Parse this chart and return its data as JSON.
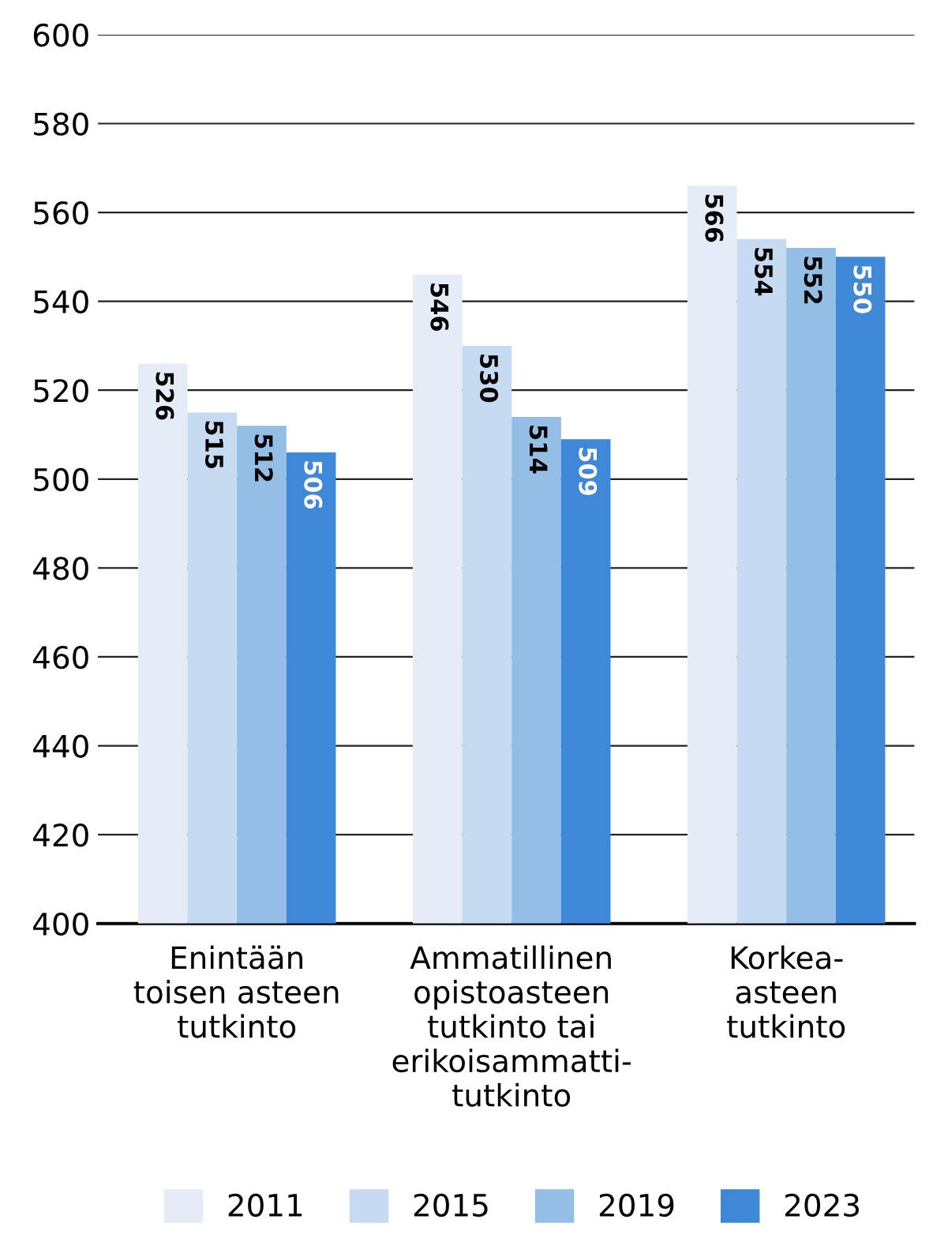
{
  "chart_data": {
    "type": "bar",
    "categories": [
      "Enintään\ntoisen asteen\ntutkinto",
      "Ammatillinen\nopistoasteen\ntutkinto tai\nerikoisammatti-\ntutkinto",
      "Korkea-\nasteen\ntutkinto"
    ],
    "series": [
      {
        "name": "2011",
        "color": "#e3ecf7",
        "values": [
          526,
          546,
          566
        ]
      },
      {
        "name": "2015",
        "color": "#c6daf1",
        "values": [
          515,
          530,
          554
        ]
      },
      {
        "name": "2019",
        "color": "#94bee6",
        "values": [
          512,
          514,
          552
        ]
      },
      {
        "name": "2023",
        "color": "#3f88d8",
        "values": [
          506,
          509,
          550
        ]
      }
    ],
    "ylim": [
      400,
      600
    ],
    "yticks": [
      400,
      420,
      440,
      460,
      480,
      500,
      520,
      540,
      560,
      580,
      600
    ],
    "grid": "y",
    "legend": "bottom",
    "data_labels": true
  }
}
